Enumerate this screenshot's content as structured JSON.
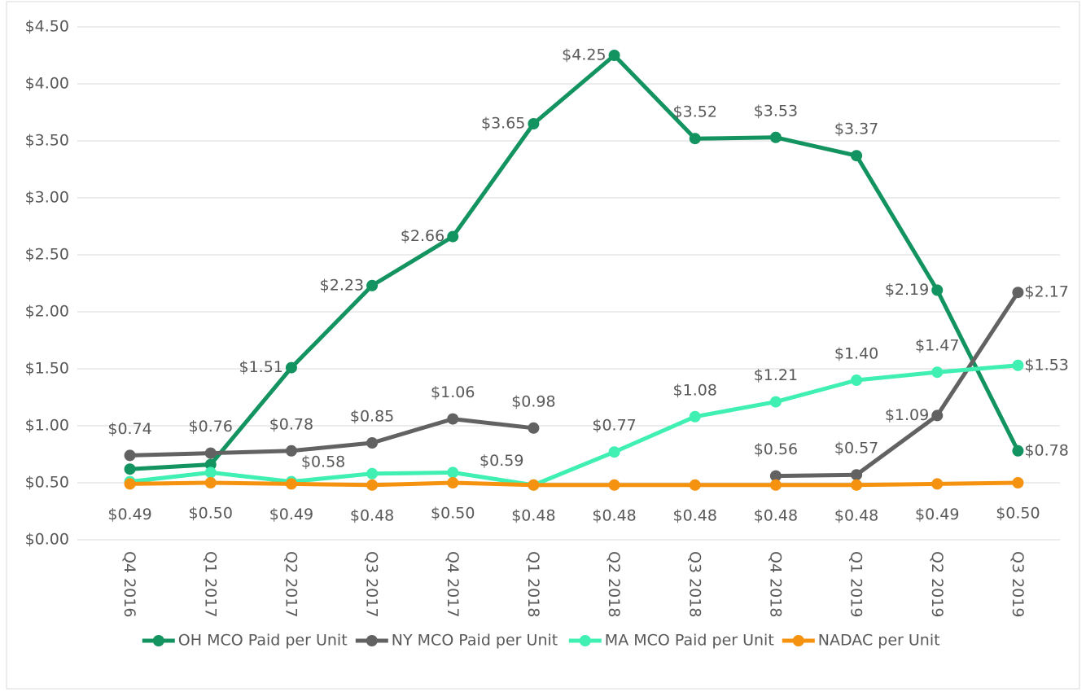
{
  "chart_data": {
    "type": "line",
    "categories": [
      "Q4 2016",
      "Q1 2017",
      "Q2 2017",
      "Q3 2017",
      "Q4 2017",
      "Q1 2018",
      "Q2 2018",
      "Q3 2018",
      "Q4 2018",
      "Q1 2019",
      "Q2 2019",
      "Q3 2019"
    ],
    "series": [
      {
        "name": "OH MCO Paid per Unit",
        "color": "#12935f",
        "values": [
          0.62,
          0.66,
          1.51,
          2.23,
          2.66,
          3.65,
          4.25,
          3.52,
          3.53,
          3.37,
          2.19,
          0.78
        ],
        "value_labels": [
          null,
          null,
          "$1.51",
          "$2.23",
          "$2.66",
          "$3.65",
          "$4.25",
          "$3.52",
          "$3.53",
          "$3.37",
          "$2.19",
          "$0.78"
        ]
      },
      {
        "name": "NY MCO Paid per Unit",
        "color": "#626262",
        "values": [
          0.74,
          0.76,
          0.78,
          0.85,
          1.06,
          0.98,
          null,
          null,
          0.56,
          0.57,
          1.09,
          2.17
        ],
        "value_labels": [
          "$0.74",
          "$0.76",
          "$0.78",
          "$0.85",
          "$1.06",
          "$0.98",
          null,
          null,
          "$0.56",
          "$0.57",
          "$1.09",
          "$2.17"
        ]
      },
      {
        "name": "MA MCO Paid per Unit",
        "color": "#3ff0b2",
        "values": [
          0.51,
          0.59,
          0.51,
          0.58,
          0.59,
          0.48,
          0.77,
          1.08,
          1.21,
          1.4,
          1.47,
          1.53
        ],
        "value_labels": [
          null,
          null,
          null,
          "$0.58",
          "$0.59",
          null,
          "$0.77",
          "$1.08",
          "$1.21",
          "$1.40",
          "$1.47",
          "$1.53"
        ]
      },
      {
        "name": "NADAC per Unit",
        "color": "#f5920f",
        "values": [
          0.49,
          0.5,
          0.49,
          0.48,
          0.5,
          0.48,
          0.48,
          0.48,
          0.48,
          0.48,
          0.49,
          0.5
        ],
        "value_labels": [
          "$0.49",
          "$0.50",
          "$0.49",
          "$0.48",
          "$0.50",
          "$0.48",
          "$0.48",
          "$0.48",
          "$0.48",
          "$0.48",
          "$0.49",
          "$0.50"
        ]
      }
    ],
    "ylim": [
      0,
      4.5
    ],
    "yticks": [
      {
        "value": 0,
        "label": "$0.00"
      },
      {
        "value": 0.5,
        "label": "$0.50"
      },
      {
        "value": 1,
        "label": "$1.00"
      },
      {
        "value": 1.5,
        "label": "$1.50"
      },
      {
        "value": 2,
        "label": "$2.00"
      },
      {
        "value": 2.5,
        "label": "$2.50"
      },
      {
        "value": 3,
        "label": "$3.00"
      },
      {
        "value": 3.5,
        "label": "$3.50"
      },
      {
        "value": 4,
        "label": "$4.00"
      },
      {
        "value": 4.5,
        "label": "$4.50"
      }
    ],
    "grid": true,
    "legend": "bottom"
  }
}
